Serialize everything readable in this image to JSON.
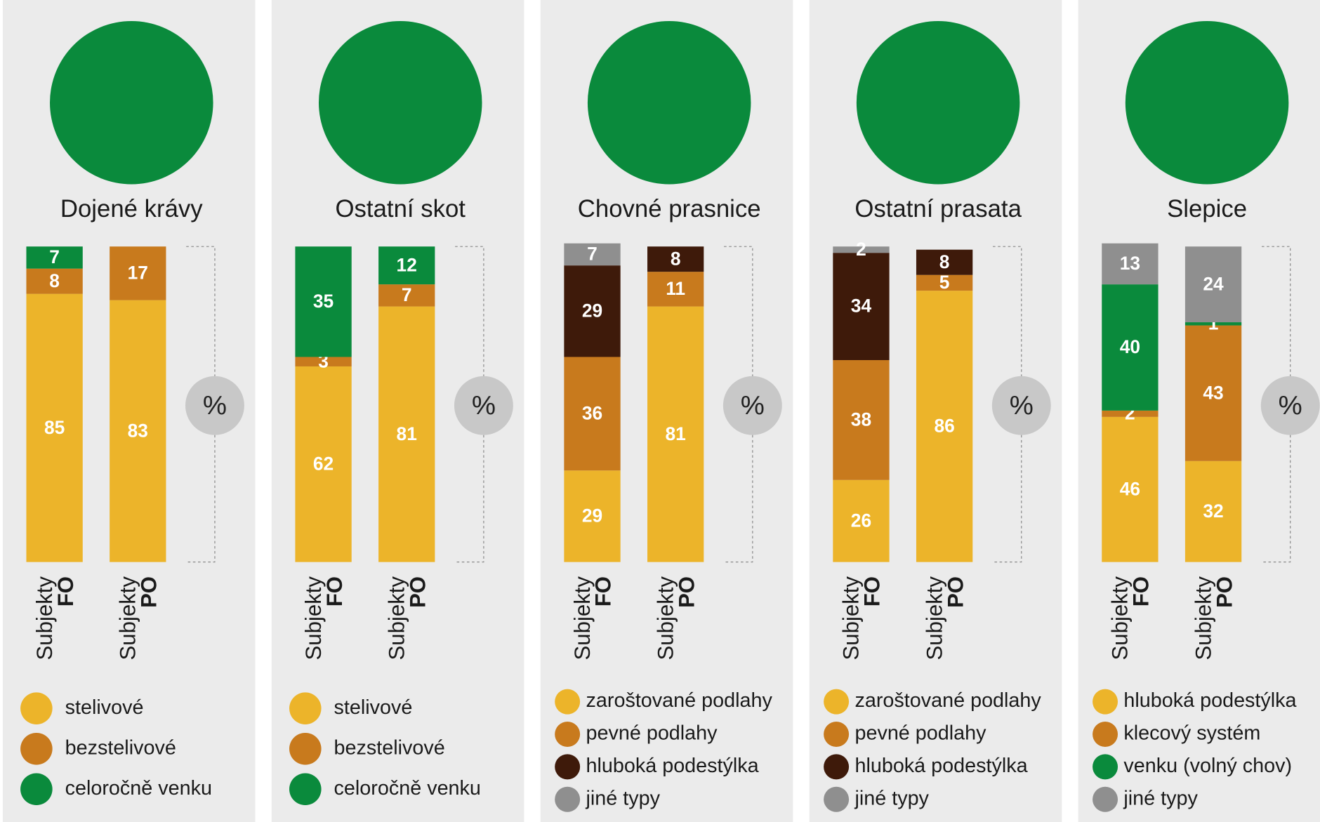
{
  "chart_data": [
    {
      "type": "bar",
      "stacked": true,
      "title": "Dojené krávy",
      "unit": "%",
      "categories": [
        [
          "Subjekty",
          "FO"
        ],
        [
          "Subjekty",
          "PO"
        ]
      ],
      "ylim": [
        0,
        100
      ],
      "series": [
        {
          "name": "stelivové",
          "color": "#ecb42a",
          "values": [
            85,
            83
          ]
        },
        {
          "name": "bezstelivové",
          "color": "#c87a1d",
          "values": [
            8,
            17
          ]
        },
        {
          "name": "celoročně venku",
          "color": "#0a8a3c",
          "values": [
            7,
            null
          ]
        }
      ]
    },
    {
      "type": "bar",
      "stacked": true,
      "title": "Ostatní skot",
      "unit": "%",
      "categories": [
        [
          "Subjekty",
          "FO"
        ],
        [
          "Subjekty",
          "PO"
        ]
      ],
      "ylim": [
        0,
        100
      ],
      "series": [
        {
          "name": "stelivové",
          "color": "#ecb42a",
          "values": [
            62,
            81
          ]
        },
        {
          "name": "bezstelivové",
          "color": "#c87a1d",
          "values": [
            3,
            7
          ]
        },
        {
          "name": "celoročně venku",
          "color": "#0a8a3c",
          "values": [
            35,
            12
          ]
        }
      ]
    },
    {
      "type": "bar",
      "stacked": true,
      "title": "Chovné prasnice",
      "unit": "%",
      "categories": [
        [
          "Subjekty",
          "FO"
        ],
        [
          "Subjekty",
          "PO"
        ]
      ],
      "ylim": [
        0,
        100
      ],
      "series": [
        {
          "name": "zaroštované podlahy",
          "color": "#ecb42a",
          "values": [
            29,
            81
          ]
        },
        {
          "name": "pevné podlahy",
          "color": "#c87a1d",
          "values": [
            36,
            11
          ]
        },
        {
          "name": "hluboká podestýlka",
          "color": "#3e1a0a",
          "values": [
            29,
            8
          ]
        },
        {
          "name": "jiné typy",
          "color": "#8f8f8f",
          "values": [
            7,
            null
          ]
        }
      ]
    },
    {
      "type": "bar",
      "stacked": true,
      "title": "Ostatní prasata",
      "unit": "%",
      "categories": [
        [
          "Subjekty",
          "FO"
        ],
        [
          "Subjekty",
          "PO"
        ]
      ],
      "ylim": [
        0,
        100
      ],
      "series": [
        {
          "name": "zaroštované podlahy",
          "color": "#ecb42a",
          "values": [
            26,
            86
          ]
        },
        {
          "name": "pevné podlahy",
          "color": "#c87a1d",
          "values": [
            38,
            5
          ]
        },
        {
          "name": "hluboká podestýlka",
          "color": "#3e1a0a",
          "values": [
            34,
            8
          ]
        },
        {
          "name": "jiné typy",
          "color": "#8f8f8f",
          "values": [
            2,
            null
          ]
        }
      ]
    },
    {
      "type": "bar",
      "stacked": true,
      "title": "Slepice",
      "unit": "%",
      "categories": [
        [
          "Subjekty",
          "FO"
        ],
        [
          "Subjekty",
          "PO"
        ]
      ],
      "ylim": [
        0,
        100
      ],
      "series": [
        {
          "name": "hluboká podestýlka",
          "color": "#ecb42a",
          "values": [
            46,
            32
          ]
        },
        {
          "name": "klecový systém",
          "color": "#c87a1d",
          "values": [
            2,
            43
          ]
        },
        {
          "name": "venku (volný chov)",
          "color": "#0a8a3c",
          "values": [
            40,
            1
          ]
        },
        {
          "name": "jiné typy",
          "color": "#8f8f8f",
          "values": [
            13,
            24
          ]
        }
      ]
    }
  ]
}
